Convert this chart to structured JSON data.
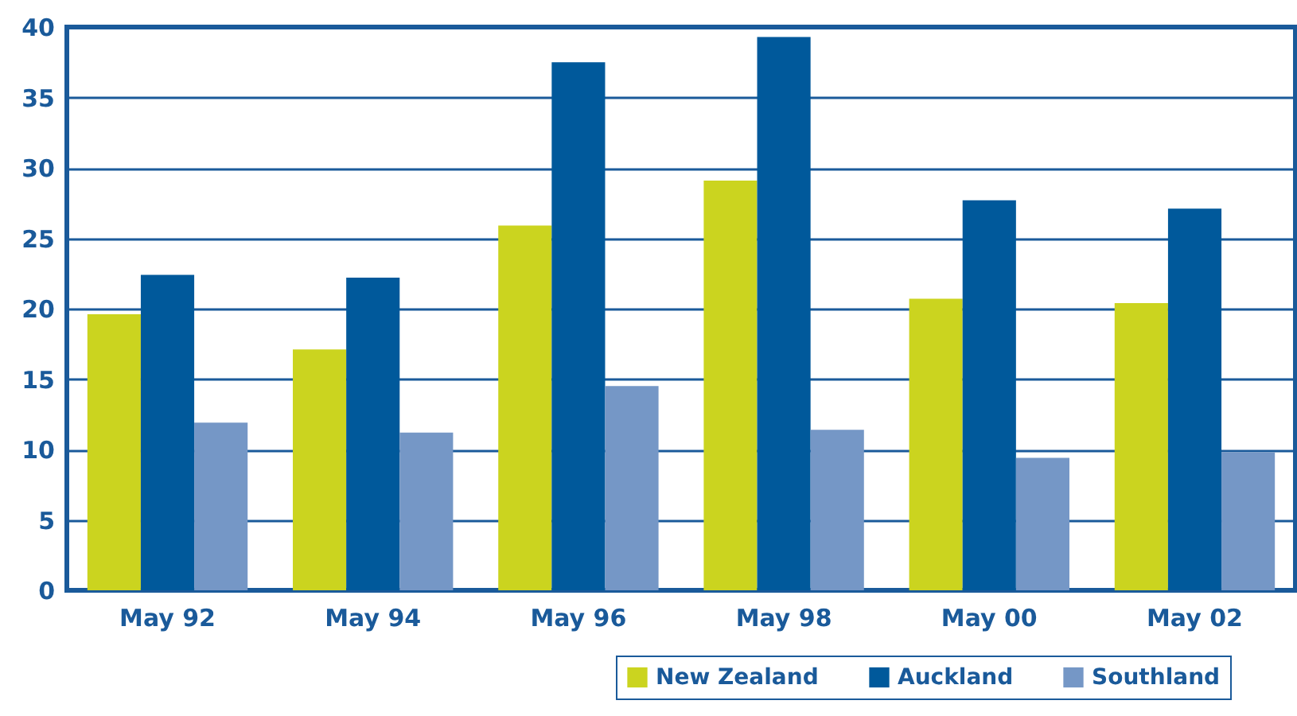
{
  "chart_data": {
    "type": "bar",
    "categories": [
      "May 92",
      "May 94",
      "May 96",
      "May 98",
      "May 00",
      "May 02"
    ],
    "series": [
      {
        "name": "New Zealand",
        "color": "#cbd41f",
        "values": [
          19.6,
          17.1,
          25.9,
          29.1,
          20.7,
          20.4
        ]
      },
      {
        "name": "Auckland",
        "color": "#00599b",
        "values": [
          22.4,
          22.2,
          37.5,
          39.3,
          27.7,
          27.1
        ]
      },
      {
        "name": "Southland",
        "color": "#7597c6",
        "values": [
          11.9,
          11.2,
          14.5,
          11.4,
          9.4,
          9.8
        ]
      }
    ],
    "ylim": [
      0,
      40
    ],
    "yticks": [
      0,
      5,
      10,
      15,
      20,
      25,
      30,
      35,
      40
    ],
    "grid": "y",
    "legend": "bottom right"
  }
}
